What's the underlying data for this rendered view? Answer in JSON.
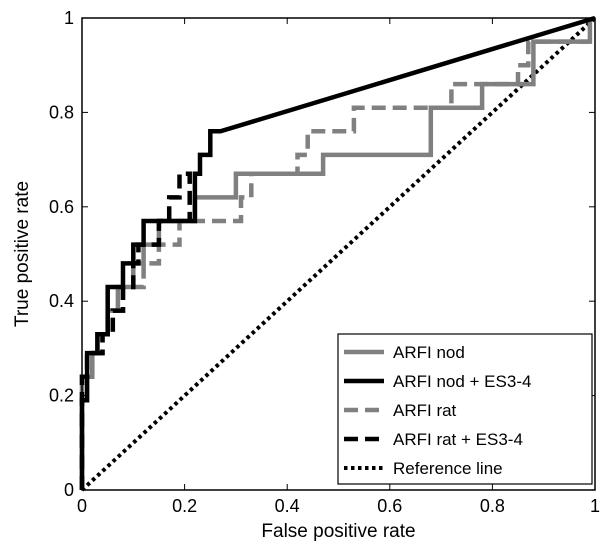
{
  "chart_data": {
    "type": "line",
    "title": "",
    "xlabel": "False positive rate",
    "ylabel": "True positive rate",
    "xlim": [
      0,
      1
    ],
    "ylim": [
      0,
      1
    ],
    "xticks": [
      0,
      0.2,
      0.4,
      0.6,
      0.8,
      1
    ],
    "yticks": [
      0,
      0.2,
      0.4,
      0.6,
      0.8,
      1
    ],
    "xtick_labels": [
      "0",
      "0.2",
      "0.4",
      "0.6",
      "0.8",
      "1"
    ],
    "ytick_labels": [
      "0",
      "0.2",
      "0.4",
      "0.6",
      "0.8",
      "1"
    ],
    "grid": false,
    "legend_position": "bottom-right",
    "series": [
      {
        "name": "ARFI nod",
        "color": "#808080",
        "dash": "solid",
        "x": [
          0,
          0,
          0.02,
          0.02,
          0.03,
          0.03,
          0.05,
          0.05,
          0.07,
          0.07,
          0.1,
          0.1,
          0.12,
          0.12,
          0.15,
          0.15,
          0.22,
          0.22,
          0.3,
          0.3,
          0.37,
          0.37,
          0.47,
          0.47,
          0.68,
          0.68,
          0.78,
          0.78,
          0.88,
          0.88,
          0.99,
          0.99
        ],
        "y": [
          0,
          0.24,
          0.24,
          0.29,
          0.29,
          0.33,
          0.33,
          0.38,
          0.38,
          0.43,
          0.43,
          0.48,
          0.48,
          0.52,
          0.52,
          0.57,
          0.57,
          0.62,
          0.62,
          0.67,
          0.67,
          0.67,
          0.67,
          0.71,
          0.71,
          0.81,
          0.81,
          0.86,
          0.86,
          0.95,
          0.95,
          1.0
        ]
      },
      {
        "name": "ARFI nod + ES3-4",
        "color": "#000000",
        "dash": "solid",
        "x": [
          0,
          0,
          0.01,
          0.01,
          0.03,
          0.03,
          0.05,
          0.05,
          0.08,
          0.08,
          0.1,
          0.1,
          0.12,
          0.12,
          0.18,
          0.18,
          0.22,
          0.22,
          0.23,
          0.23,
          0.25,
          0.25,
          0.27,
          1.0
        ],
        "y": [
          0,
          0.19,
          0.19,
          0.29,
          0.29,
          0.33,
          0.33,
          0.43,
          0.43,
          0.48,
          0.48,
          0.52,
          0.52,
          0.57,
          0.57,
          0.57,
          0.57,
          0.67,
          0.67,
          0.71,
          0.71,
          0.76,
          0.76,
          1.0
        ]
      },
      {
        "name": "ARFI rat",
        "color": "#808080",
        "dash": "dashed",
        "x": [
          0,
          0,
          0.02,
          0.02,
          0.04,
          0.04,
          0.06,
          0.06,
          0.08,
          0.08,
          0.12,
          0.12,
          0.15,
          0.15,
          0.19,
          0.19,
          0.31,
          0.31,
          0.33,
          0.33,
          0.42,
          0.42,
          0.44,
          0.44,
          0.53,
          0.53,
          0.59,
          0.59,
          0.72,
          0.72,
          0.85,
          0.85,
          0.87,
          0.87,
          0.99
        ],
        "y": [
          0,
          0.24,
          0.24,
          0.29,
          0.29,
          0.33,
          0.33,
          0.38,
          0.38,
          0.43,
          0.43,
          0.48,
          0.48,
          0.52,
          0.52,
          0.57,
          0.57,
          0.62,
          0.62,
          0.67,
          0.67,
          0.71,
          0.71,
          0.76,
          0.76,
          0.81,
          0.81,
          0.81,
          0.81,
          0.86,
          0.86,
          0.9,
          0.9,
          0.95,
          0.95
        ]
      },
      {
        "name": "ARFI rat + ES3-4",
        "color": "#000000",
        "dash": "dashed",
        "x": [
          0,
          0,
          0.01,
          0.01,
          0.04,
          0.04,
          0.06,
          0.06,
          0.08,
          0.08,
          0.1,
          0.1,
          0.11,
          0.11,
          0.15,
          0.15,
          0.17,
          0.17,
          0.19,
          0.19,
          0.21,
          0.21
        ],
        "y": [
          0,
          0.24,
          0.24,
          0.29,
          0.29,
          0.33,
          0.33,
          0.38,
          0.38,
          0.43,
          0.43,
          0.48,
          0.48,
          0.52,
          0.52,
          0.57,
          0.57,
          0.62,
          0.62,
          0.67,
          0.67,
          0.57
        ]
      },
      {
        "name": "Reference line",
        "color": "#000000",
        "dash": "dotted",
        "x": [
          0,
          1
        ],
        "y": [
          0,
          1
        ]
      }
    ]
  }
}
